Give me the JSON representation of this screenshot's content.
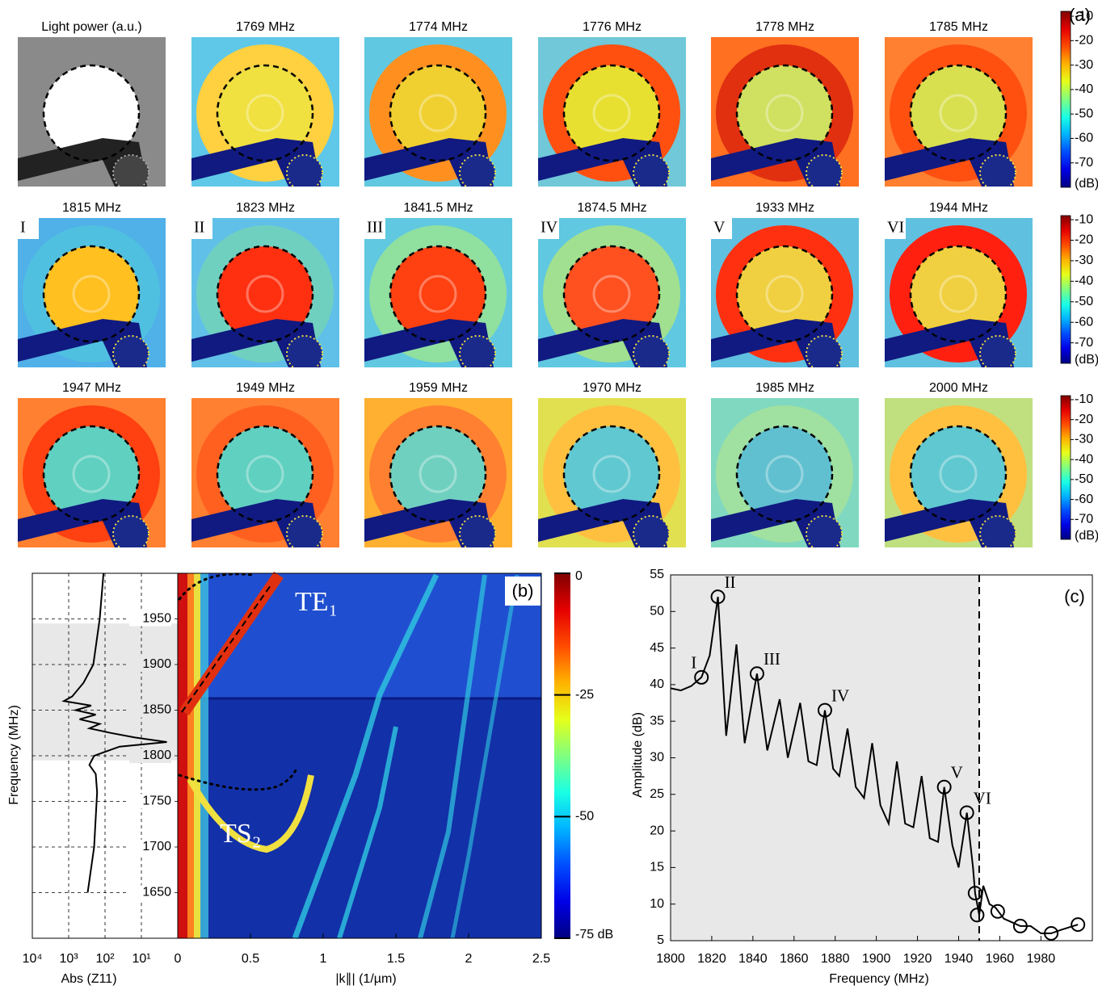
{
  "panel_a": {
    "label": "(a)",
    "titles": [
      "Light power (a.u.)",
      "1769 MHz",
      "1774 MHz",
      "1776 MHz",
      "1778 MHz",
      "1785 MHz",
      "1815 MHz",
      "1823 MHz",
      "1841.5 MHz",
      "1874.5 MHz",
      "1933 MHz",
      "1944 MHz",
      "1947 MHz",
      "1949 MHz",
      "1959 MHz",
      "1970 MHz",
      "1985 MHz",
      "2000 MHz"
    ],
    "roman": [
      "I",
      "II",
      "III",
      "IV",
      "V",
      "VI"
    ],
    "colorbar": {
      "clim": [
        -80,
        -8
      ],
      "ticks": [
        -10,
        -20,
        -30,
        -40,
        -50,
        -60,
        -70
      ],
      "unit": "(dB)"
    }
  },
  "chart_data": [
    {
      "type": "line",
      "orientation": "horizontal",
      "xlabel": "Abs (Z11)",
      "ylabel": "Frequency (MHz)",
      "xlog": true,
      "xlim": [
        10000,
        1
      ],
      "ylim": [
        1600,
        2000
      ],
      "xticks": [
        {
          "value": 10000,
          "label": "10⁴"
        },
        {
          "value": 1000,
          "label": "10³"
        },
        {
          "value": 100,
          "label": "10²"
        },
        {
          "value": 10,
          "label": "10¹"
        }
      ],
      "yticks": [
        1650,
        1700,
        1750,
        1800,
        1850,
        1900,
        1950
      ],
      "grid": true,
      "shade": [
        1795,
        1945
      ],
      "color": "#000000",
      "frequency": [
        2000,
        1950,
        1900,
        1880,
        1865,
        1860,
        1855,
        1850,
        1845,
        1840,
        1835,
        1830,
        1825,
        1820,
        1815,
        1810,
        1800,
        1790,
        1780,
        1760,
        1700,
        1650
      ],
      "values": [
        110,
        140,
        210,
        390,
        800,
        1350,
        240,
        640,
        180,
        500,
        140,
        270,
        68,
        15,
        2,
        40,
        200,
        270,
        180,
        165,
        200,
        300
      ]
    },
    {
      "type": "heatmap",
      "panel_label": "(b)",
      "xlabel": "|k∥| (1/µm)",
      "xlim": [
        0,
        2.5
      ],
      "ylim": [
        1600,
        2000
      ],
      "xticks": [
        0,
        0.5,
        1,
        1.5,
        2,
        2.5
      ],
      "colorbar": {
        "clim": [
          -75,
          0
        ],
        "ticks": [
          0,
          -25,
          -50,
          {
            "value": -75,
            "label": "-75 dB"
          }
        ]
      },
      "annotations": [
        "TE₁",
        "TS₂"
      ]
    },
    {
      "type": "line",
      "panel_label": "(c)",
      "xlabel": "Frequency (MHz)",
      "ylabel": "Amplitude (dB)",
      "xlim": [
        1800,
        2005
      ],
      "ylim": [
        5,
        55
      ],
      "xticks": [
        1800,
        1820,
        1840,
        1860,
        1880,
        1900,
        1920,
        1940,
        1960,
        1980
      ],
      "yticks": [
        5,
        10,
        15,
        20,
        25,
        30,
        35,
        40,
        45,
        50,
        55
      ],
      "shade": [
        1800,
        1950
      ],
      "vline": 1950,
      "color": "#000000",
      "x": [
        1800,
        1805,
        1810,
        1815,
        1819,
        1823,
        1827,
        1832,
        1836,
        1842,
        1847,
        1853,
        1857,
        1863,
        1867,
        1871,
        1875,
        1879,
        1882,
        1886,
        1890,
        1894,
        1898,
        1902,
        1906,
        1910,
        1914,
        1918,
        1922,
        1926,
        1930,
        1933,
        1937,
        1940,
        1944,
        1947,
        1948,
        1950,
        1952,
        1955,
        1958,
        1962,
        1966,
        1970,
        1975,
        1980,
        1985,
        1990,
        1998
      ],
      "values": [
        39.5,
        39.2,
        39.8,
        41,
        44,
        52,
        33,
        45.5,
        32,
        41.5,
        31,
        38,
        30,
        37.5,
        29.5,
        29,
        36.5,
        28.5,
        27.5,
        34,
        26,
        24.5,
        32,
        23.5,
        21,
        29.5,
        21,
        20.5,
        27.5,
        19,
        18.5,
        26,
        18,
        15,
        22.5,
        15,
        11.5,
        8.5,
        12.5,
        10,
        9.5,
        8,
        7.5,
        7,
        7,
        6,
        6,
        6.5,
        7.2
      ],
      "markers": {
        "x": [
          1815,
          1823,
          1842,
          1875,
          1933,
          1944,
          1948,
          1949,
          1959,
          1970,
          1985,
          1998
        ],
        "y": [
          41,
          52,
          41.5,
          36.5,
          26,
          22.5,
          11.5,
          8.5,
          9,
          7,
          6,
          7.2
        ],
        "labels": [
          "I",
          "II",
          "III",
          "IV",
          "V",
          "VI",
          null,
          null,
          null,
          null,
          null,
          null
        ]
      }
    }
  ]
}
